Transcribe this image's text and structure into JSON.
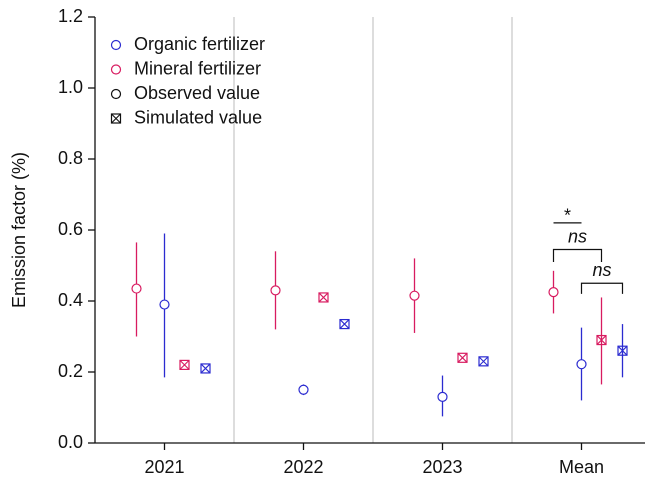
{
  "chart_data": {
    "type": "errorpoint",
    "y_label": "Emission factor (%)",
    "categories": [
      "2021",
      "2022",
      "2023",
      "Mean"
    ],
    "ylim": [
      0,
      1.2
    ],
    "yticks": [
      {
        "value": 0,
        "label": "0.0"
      },
      0.2,
      0.4,
      0.6,
      0.8,
      {
        "value": 1,
        "label": "1.0"
      },
      1.2
    ],
    "series": [
      {
        "color": "#d81b60",
        "marker": "circle",
        "values": [
          0.435,
          0.43,
          0.415,
          0.425
        ],
        "low": [
          0.3,
          0.32,
          0.31,
          0.365
        ],
        "high": [
          0.565,
          0.54,
          0.52,
          0.485
        ]
      },
      {
        "color": "#2b2bd0",
        "marker": "circle",
        "values": [
          0.39,
          0.15,
          0.13,
          0.222
        ],
        "low": [
          0.185,
          0.135,
          0.075,
          0.12
        ],
        "high": [
          0.59,
          0.165,
          0.19,
          0.325
        ]
      },
      {
        "color": "#d81b60",
        "marker": "boxx",
        "values": [
          0.22,
          0.41,
          0.24,
          0.29
        ],
        "low": [
          null,
          null,
          null,
          0.165
        ],
        "high": [
          null,
          null,
          null,
          0.41
        ]
      },
      {
        "color": "#2b2bd0",
        "marker": "boxx",
        "values": [
          0.21,
          0.335,
          0.23,
          0.26
        ],
        "low": [
          null,
          null,
          null,
          0.185
        ],
        "high": [
          null,
          null,
          null,
          0.335
        ]
      }
    ],
    "legend": [
      {
        "label": "Organic fertilizer",
        "color": "#2b2bd0",
        "marker": "circle"
      },
      {
        "label": "Mineral fertilizer",
        "color": "#d81b60",
        "marker": "circle"
      },
      {
        "label": "Observed value",
        "color": "#111111",
        "marker": "circle"
      },
      {
        "label": "Simulated value",
        "color": "#111111",
        "marker": "boxx"
      }
    ],
    "annotations": [
      {
        "text": "*"
      },
      {
        "text": "ns"
      },
      {
        "text": "ns"
      }
    ]
  }
}
